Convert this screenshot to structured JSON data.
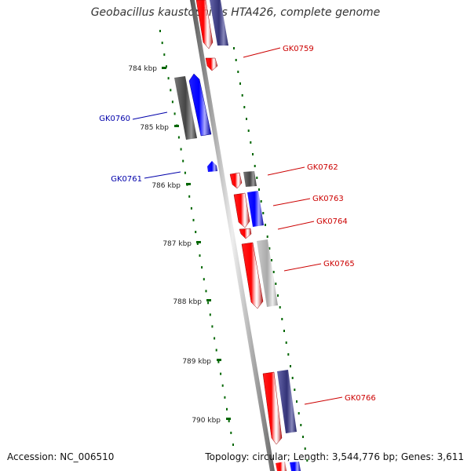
{
  "title": "Geobacillus kaustophilus HTA426, complete genome",
  "footer": {
    "accession": "Accession: NC_006510",
    "summary": "Topology: circular; Length: 3,544,776 bp; Genes: 3,611"
  },
  "colors": {
    "forward": "#ff0000",
    "reverse": "#0000ff",
    "cds_dark": "#555555",
    "cds_light": "#bbbbbb",
    "cds_purple": "#444488",
    "ticks": "#006600",
    "backbone": "#888888"
  },
  "ticks": [
    {
      "label": "784 kbp"
    },
    {
      "label": "785 kbp"
    },
    {
      "label": "786 kbp"
    },
    {
      "label": "787 kbp"
    },
    {
      "label": "788 kbp"
    },
    {
      "label": "789 kbp"
    },
    {
      "label": "790 kbp"
    }
  ],
  "genes": [
    {
      "label": "GK0759",
      "color": "#cc0000"
    },
    {
      "label": "GK0760",
      "color": "#0000aa"
    },
    {
      "label": "GK0761",
      "color": "#0000aa"
    },
    {
      "label": "GK0762",
      "color": "#cc0000"
    },
    {
      "label": "GK0763",
      "color": "#cc0000"
    },
    {
      "label": "GK0764",
      "color": "#cc0000"
    },
    {
      "label": "GK0765",
      "color": "#cc0000"
    },
    {
      "label": "GK0766",
      "color": "#cc0000"
    }
  ]
}
